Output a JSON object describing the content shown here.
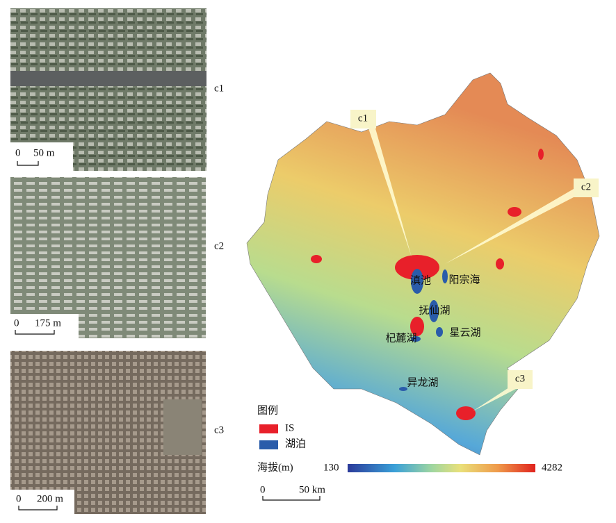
{
  "panels": [
    {
      "label": "c1",
      "scale": {
        "zero": "0",
        "length": "50 m"
      }
    },
    {
      "label": "c2",
      "scale": {
        "zero": "0",
        "length": "175 m"
      }
    },
    {
      "label": "c3",
      "scale": {
        "zero": "0",
        "length": "200 m"
      }
    }
  ],
  "map": {
    "callouts": [
      "c1",
      "c2",
      "c3"
    ],
    "lakes": [
      "滇池",
      "阳宗海",
      "抚仙湖",
      "星云湖",
      "杞麓湖",
      "异龙湖"
    ],
    "legend": {
      "title": "图例",
      "items": [
        {
          "label": "IS",
          "color": "#e8202a"
        },
        {
          "label": "湖泊",
          "color": "#2a5caa"
        }
      ],
      "elevation": {
        "label": "海拔(m)",
        "min": 130,
        "max": 4282
      }
    },
    "scalebar": {
      "zero": "0",
      "length": "50 km"
    }
  }
}
